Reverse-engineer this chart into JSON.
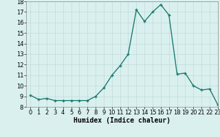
{
  "x": [
    0,
    1,
    2,
    3,
    4,
    5,
    6,
    7,
    8,
    9,
    10,
    11,
    12,
    13,
    14,
    15,
    16,
    17,
    18,
    19,
    20,
    21,
    22,
    23
  ],
  "y": [
    9.1,
    8.7,
    8.8,
    8.6,
    8.6,
    8.6,
    8.6,
    8.6,
    9.0,
    9.8,
    11.0,
    11.9,
    13.0,
    17.2,
    16.1,
    17.0,
    17.7,
    16.7,
    11.1,
    11.2,
    10.0,
    9.6,
    9.7,
    8.2
  ],
  "line_color": "#1a7a6e",
  "marker": "+",
  "marker_size": 3,
  "bg_color": "#d9f0ef",
  "grid_color": "#c0dbd9",
  "xlabel": "Humidex (Indice chaleur)",
  "ylim": [
    8,
    18
  ],
  "xlim": [
    -0.5,
    23
  ],
  "yticks": [
    8,
    9,
    10,
    11,
    12,
    13,
    14,
    15,
    16,
    17,
    18
  ],
  "xticks": [
    0,
    1,
    2,
    3,
    4,
    5,
    6,
    7,
    8,
    9,
    10,
    11,
    12,
    13,
    14,
    15,
    16,
    17,
    18,
    19,
    20,
    21,
    22,
    23
  ],
  "xlabel_fontsize": 7,
  "tick_fontsize": 6,
  "line_width": 1.0
}
